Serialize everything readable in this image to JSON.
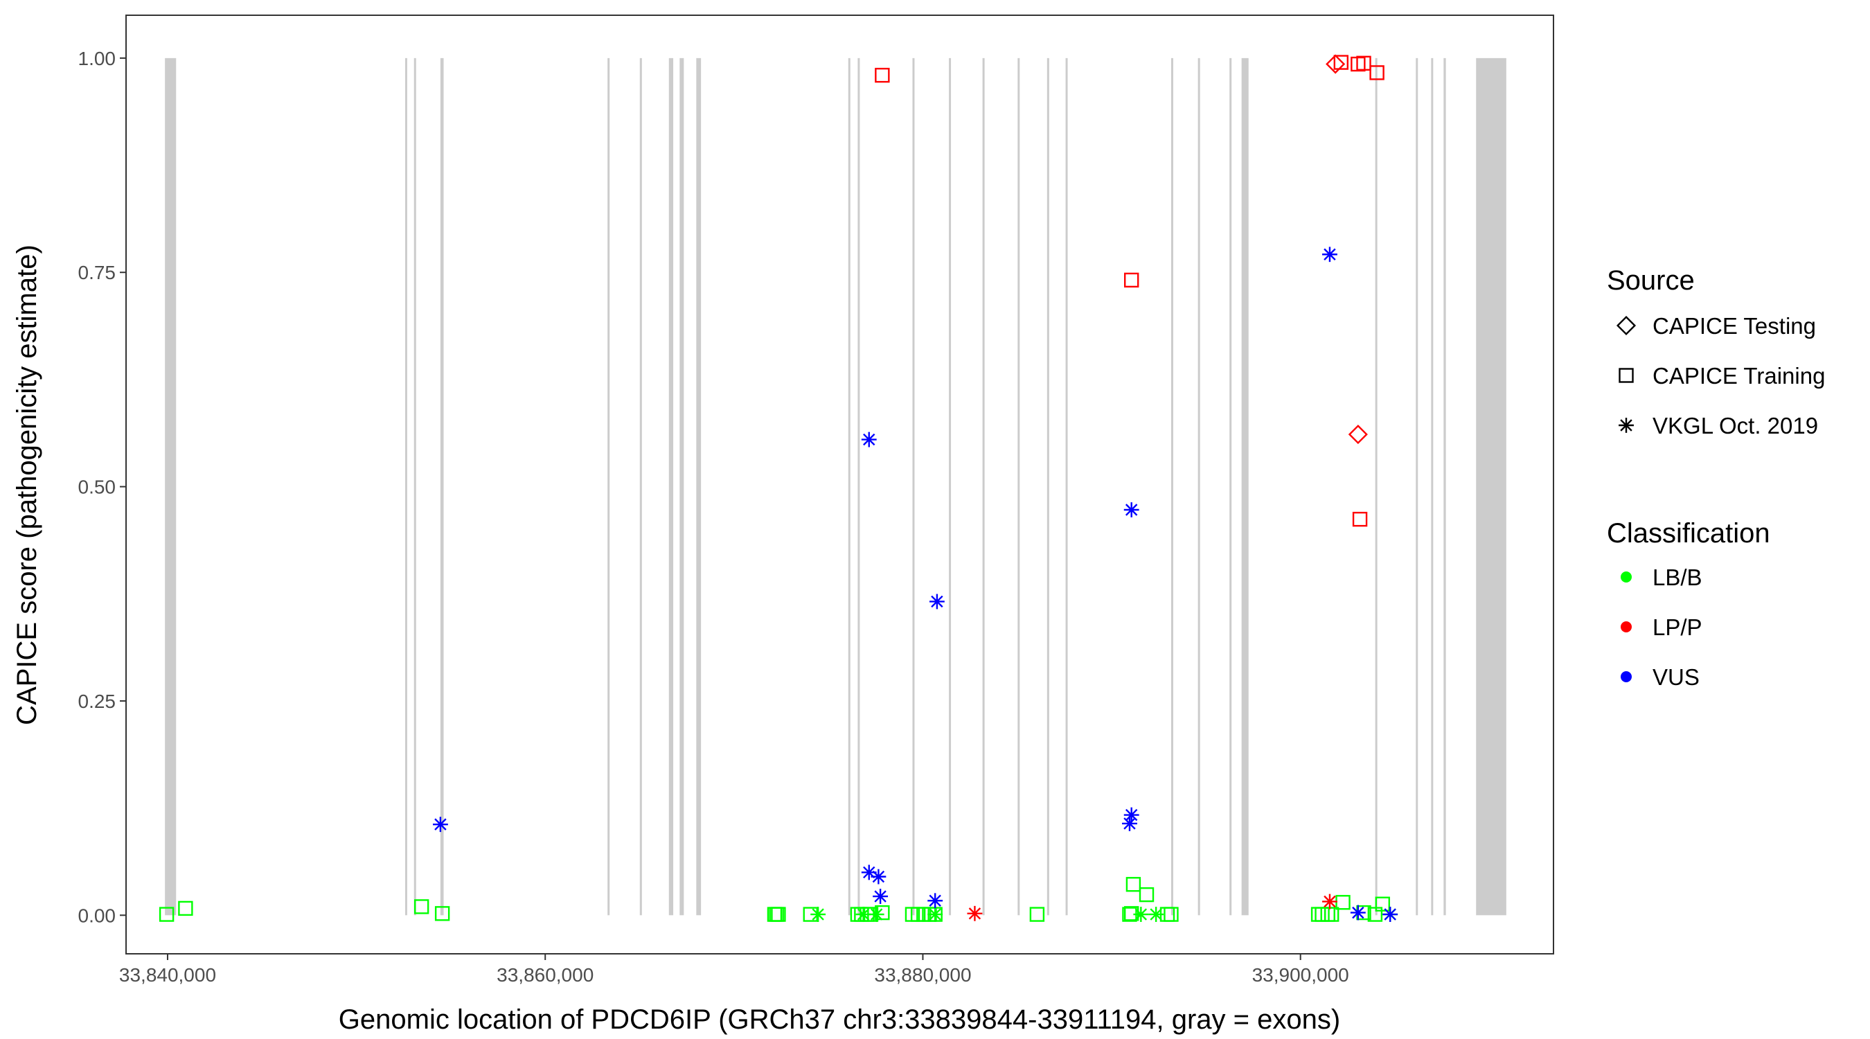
{
  "chart_data": {
    "type": "scatter",
    "title": "",
    "xlabel": "Genomic location of PDCD6IP (GRCh37 chr3:33839844-33911194, gray = exons)",
    "ylabel": "CAPICE score (pathogenicity estimate)",
    "xlim": [
      33837800,
      33913400
    ],
    "ylim": [
      -0.045,
      1.05
    ],
    "x_ticks": [
      33840000,
      33860000,
      33880000,
      33900000
    ],
    "x_tick_labels": [
      "33,840,000",
      "33,860,000",
      "33,880,000",
      "33,900,000"
    ],
    "y_ticks": [
      0,
      0.25,
      0.5,
      0.75,
      1
    ],
    "y_tick_labels": [
      "0.00",
      "0.25",
      "0.50",
      "0.75",
      "1.00"
    ],
    "grid": false,
    "exon_color": "#cccccc",
    "exons": [
      [
        33839860,
        33840450
      ],
      [
        33852580,
        33852650
      ],
      [
        33853050,
        33853110
      ],
      [
        33854450,
        33854620
      ],
      [
        33863300,
        33863360
      ],
      [
        33865010,
        33865110
      ],
      [
        33866550,
        33866780
      ],
      [
        33867120,
        33867340
      ],
      [
        33868000,
        33868250
      ],
      [
        33876050,
        33876120
      ],
      [
        33876550,
        33876620
      ],
      [
        33879450,
        33879530
      ],
      [
        33881380,
        33881460
      ],
      [
        33883160,
        33883240
      ],
      [
        33885020,
        33885100
      ],
      [
        33886580,
        33886660
      ],
      [
        33887560,
        33887640
      ],
      [
        33893150,
        33893220
      ],
      [
        33894570,
        33894670
      ],
      [
        33896240,
        33896310
      ],
      [
        33896880,
        33897250
      ],
      [
        33903960,
        33904060
      ],
      [
        33906110,
        33906200
      ],
      [
        33906920,
        33907020
      ],
      [
        33907580,
        33907700
      ],
      [
        33909300,
        33910900
      ]
    ],
    "legend": {
      "position": "right",
      "source_title": "Source",
      "source_items": [
        {
          "label": "CAPICE Testing",
          "shape": "diamond"
        },
        {
          "label": "CAPICE Training",
          "shape": "square"
        },
        {
          "label": "VKGL Oct. 2019",
          "shape": "asterisk"
        }
      ],
      "classification_title": "Classification",
      "classification_items": [
        {
          "label": "LB/B",
          "color": "#00ff00"
        },
        {
          "label": "LP/P",
          "color": "#ff0000"
        },
        {
          "label": "VUS",
          "color": "#0000ff"
        }
      ]
    },
    "series": [
      {
        "source": "CAPICE Training",
        "classification": "LB/B",
        "color": "#00ff00",
        "shape": "square",
        "points": [
          [
            33839950,
            0.001
          ],
          [
            33840950,
            0.008
          ],
          [
            33853450,
            0.01
          ],
          [
            33854550,
            0.002
          ],
          [
            33872150,
            0.001
          ],
          [
            33872250,
            0.001
          ],
          [
            33872350,
            0.001
          ],
          [
            33874050,
            0.001
          ],
          [
            33876550,
            0.001
          ],
          [
            33876750,
            0.001
          ],
          [
            33877050,
            0.001
          ],
          [
            33877250,
            0.001
          ],
          [
            33877850,
            0.003
          ],
          [
            33879450,
            0.001
          ],
          [
            33879750,
            0.001
          ],
          [
            33880050,
            0.001
          ],
          [
            33880350,
            0.001
          ],
          [
            33880650,
            0.001
          ],
          [
            33886050,
            0.001
          ],
          [
            33890950,
            0.001
          ],
          [
            33891050,
            0.002
          ],
          [
            33891150,
            0.036
          ],
          [
            33891850,
            0.024
          ],
          [
            33892950,
            0.001
          ],
          [
            33893150,
            0.001
          ],
          [
            33900950,
            0.001
          ],
          [
            33901150,
            0.001
          ],
          [
            33901450,
            0.001
          ],
          [
            33901650,
            0.001
          ],
          [
            33902250,
            0.015
          ],
          [
            33903350,
            0.003
          ],
          [
            33903950,
            0.001
          ],
          [
            33904350,
            0.013
          ]
        ]
      },
      {
        "source": "CAPICE Training",
        "classification": "LP/P",
        "color": "#ff0000",
        "shape": "square",
        "points": [
          [
            33877850,
            0.98
          ],
          [
            33891050,
            0.741
          ],
          [
            33902150,
            0.995
          ],
          [
            33903050,
            0.993
          ],
          [
            33903350,
            0.994
          ],
          [
            33904050,
            0.983
          ],
          [
            33903150,
            0.462
          ]
        ]
      },
      {
        "source": "CAPICE Testing",
        "classification": "LP/P",
        "color": "#ff0000",
        "shape": "diamond",
        "points": [
          [
            33901850,
            0.993
          ],
          [
            33903050,
            0.561
          ]
        ]
      },
      {
        "source": "VKGL Oct. 2019",
        "classification": "LB/B",
        "color": "#00ff00",
        "shape": "asterisk",
        "points": [
          [
            33874450,
            0.001
          ],
          [
            33876850,
            0.001
          ],
          [
            33877550,
            0.001
          ],
          [
            33880650,
            0.001
          ],
          [
            33891550,
            0.001
          ],
          [
            33892350,
            0.001
          ],
          [
            33904750,
            0.001
          ]
        ]
      },
      {
        "source": "VKGL Oct. 2019",
        "classification": "LP/P",
        "color": "#ff0000",
        "shape": "asterisk",
        "points": [
          [
            33882750,
            0.002
          ],
          [
            33901550,
            0.016
          ]
        ]
      },
      {
        "source": "VKGL Oct. 2019",
        "classification": "VUS",
        "color": "#0000ff",
        "shape": "asterisk",
        "points": [
          [
            33854450,
            0.106
          ],
          [
            33877150,
            0.555
          ],
          [
            33877150,
            0.05
          ],
          [
            33877650,
            0.045
          ],
          [
            33877750,
            0.022
          ],
          [
            33880750,
            0.366
          ],
          [
            33880650,
            0.017
          ],
          [
            33891050,
            0.473
          ],
          [
            33891050,
            0.117
          ],
          [
            33890950,
            0.107
          ],
          [
            33901550,
            0.771
          ],
          [
            33903050,
            0.003
          ],
          [
            33904750,
            0.001
          ]
        ]
      }
    ]
  }
}
